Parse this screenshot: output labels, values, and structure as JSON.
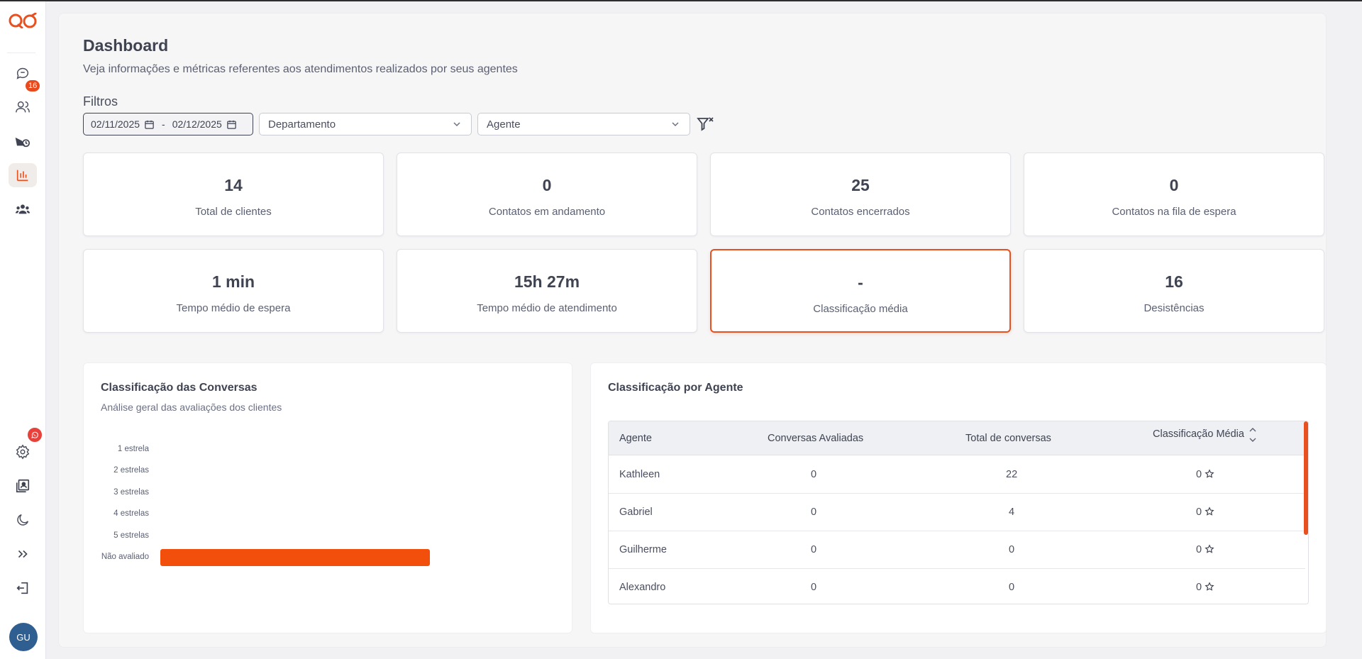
{
  "sidebar": {
    "badges": {
      "chats": "16"
    },
    "avatar": "GU",
    "colors": {
      "accent": "#e8501f",
      "whatsapp_badge": "#e8403a"
    }
  },
  "header": {
    "title": "Dashboard",
    "subtitle": "Veja informações e métricas referentes aos atendimentos realizados por seus agentes"
  },
  "filters": {
    "label": "Filtros",
    "date_start": "02/11/2025",
    "date_separator": "-",
    "date_end": "02/12/2025",
    "department_placeholder": "Departamento",
    "agent_placeholder": "Agente"
  },
  "metrics": [
    {
      "value": "14",
      "label": "Total de clientes"
    },
    {
      "value": "0",
      "label": "Contatos em andamento"
    },
    {
      "value": "25",
      "label": "Contatos encerrados"
    },
    {
      "value": "0",
      "label": "Contatos na fila de espera"
    },
    {
      "value": "1 min",
      "label": "Tempo médio de espera"
    },
    {
      "value": "15h 27m",
      "label": "Tempo médio de atendimento"
    },
    {
      "value": "-",
      "label": "Classificação média"
    },
    {
      "value": "16",
      "label": "Desistências"
    }
  ],
  "ratings_panel": {
    "title": "Classificação das Conversas",
    "subtitle": "Análise geral das avaliações dos clientes"
  },
  "chart_data": {
    "type": "bar",
    "orientation": "horizontal",
    "categories": [
      "1 estrela",
      "2 estrelas",
      "3 estrelas",
      "4 estrelas",
      "5 estrelas",
      "Não avaliado"
    ],
    "values": [
      0,
      0,
      0,
      0,
      0,
      1
    ],
    "bar_color": "#f24f0c",
    "title": "",
    "xlabel": "",
    "ylabel": ""
  },
  "agents_panel": {
    "title": "Classificação por Agente",
    "columns": [
      "Agente",
      "Conversas Avaliadas",
      "Total de conversas",
      "Classificação Média"
    ],
    "rows": [
      {
        "agent": "Kathleen",
        "rated": "0",
        "total": "22",
        "avg": "0"
      },
      {
        "agent": "Gabriel",
        "rated": "0",
        "total": "4",
        "avg": "0"
      },
      {
        "agent": "Guilherme",
        "rated": "0",
        "total": "0",
        "avg": "0"
      },
      {
        "agent": "Alexandro",
        "rated": "0",
        "total": "0",
        "avg": "0"
      }
    ]
  }
}
